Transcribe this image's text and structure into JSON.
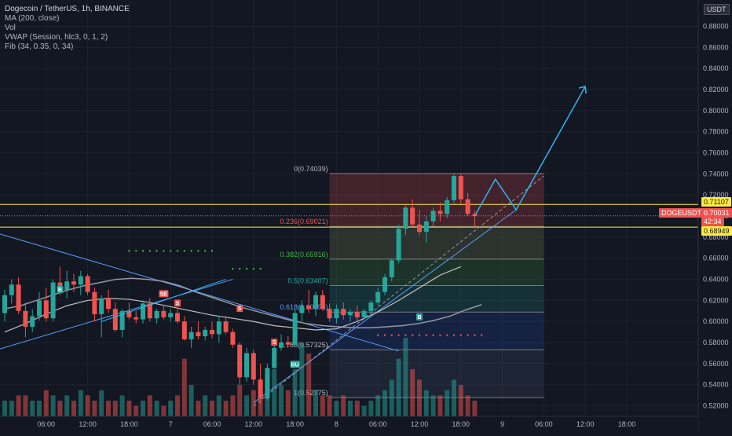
{
  "header": {
    "symbol_line": "Dogecoin / TetherUS, 1h, BINANCE",
    "indicators": [
      "MA (200, close)",
      "Vol",
      "VWAP (Session, hlc3, 0, 1, 2)",
      "Fib (34, 0.35, 0, 34)"
    ]
  },
  "currency_badge": "USDT",
  "colors": {
    "up": "#26a69a",
    "down": "#ef5350",
    "bg": "#131722",
    "fib_line": "#5b9cf6",
    "yellow": "#ffeb3b"
  },
  "price_pills": {
    "upper": "0.71107",
    "ticker": "DOGEUSDT",
    "last": "0.70031",
    "countdown": "42:34",
    "lower": "0.68949"
  },
  "chart_data": {
    "type": "candlestick",
    "ylim": [
      0.51,
      0.905
    ],
    "y_ticks": [
      0.52,
      0.54,
      0.56,
      0.58,
      0.6,
      0.62,
      0.64,
      0.66,
      0.68,
      0.7,
      0.72,
      0.74,
      0.76,
      0.78,
      0.8,
      0.82,
      0.84,
      0.86,
      0.88
    ],
    "y_tick_labels": [
      "0.52000",
      "0.54000",
      "0.56000",
      "0.58000",
      "0.60000",
      "0.62000",
      "0.64000",
      "0.66000",
      "0.68000",
      "0.70000",
      "0.72000",
      "0.74000",
      "0.76000",
      "0.78000",
      "0.80000",
      "0.82000",
      "0.84000",
      "0.86000",
      "0.88000"
    ],
    "x_ticks": [
      {
        "label": "06:00",
        "bar": 6
      },
      {
        "label": "12:00",
        "bar": 12
      },
      {
        "label": "18:00",
        "bar": 18
      },
      {
        "label": "7",
        "bar": 24
      },
      {
        "label": "06:00",
        "bar": 30
      },
      {
        "label": "12:00",
        "bar": 36
      },
      {
        "label": "18:00",
        "bar": 42
      },
      {
        "label": "8",
        "bar": 48
      },
      {
        "label": "06:00",
        "bar": 54
      },
      {
        "label": "12:00",
        "bar": 60
      },
      {
        "label": "18:00",
        "bar": 66
      },
      {
        "label": "9",
        "bar": 72
      },
      {
        "label": "06:00",
        "bar": 78
      },
      {
        "label": "12:00",
        "bar": 84
      },
      {
        "label": "18:00",
        "bar": 90
      }
    ],
    "candles": [
      [
        0.608,
        0.63,
        0.6,
        0.625,
        3
      ],
      [
        0.625,
        0.64,
        0.617,
        0.635,
        3
      ],
      [
        0.635,
        0.642,
        0.607,
        0.61,
        4
      ],
      [
        0.61,
        0.618,
        0.585,
        0.595,
        4
      ],
      [
        0.595,
        0.612,
        0.59,
        0.605,
        3
      ],
      [
        0.605,
        0.628,
        0.601,
        0.62,
        3
      ],
      [
        0.62,
        0.632,
        0.6,
        0.603,
        5
      ],
      [
        0.603,
        0.64,
        0.6,
        0.637,
        4
      ],
      [
        0.637,
        0.652,
        0.625,
        0.63,
        3
      ],
      [
        0.63,
        0.648,
        0.622,
        0.638,
        4
      ],
      [
        0.638,
        0.645,
        0.628,
        0.635,
        3
      ],
      [
        0.635,
        0.648,
        0.625,
        0.643,
        5
      ],
      [
        0.643,
        0.645,
        0.625,
        0.628,
        4
      ],
      [
        0.628,
        0.632,
        0.6,
        0.607,
        3
      ],
      [
        0.607,
        0.625,
        0.585,
        0.622,
        5
      ],
      [
        0.622,
        0.63,
        0.608,
        0.612,
        3
      ],
      [
        0.612,
        0.618,
        0.59,
        0.592,
        3
      ],
      [
        0.592,
        0.612,
        0.585,
        0.61,
        4
      ],
      [
        0.61,
        0.618,
        0.602,
        0.604,
        3
      ],
      [
        0.604,
        0.61,
        0.598,
        0.602,
        2
      ],
      [
        0.602,
        0.62,
        0.598,
        0.617,
        3
      ],
      [
        0.617,
        0.622,
        0.6,
        0.603,
        4
      ],
      [
        0.603,
        0.612,
        0.598,
        0.61,
        3
      ],
      [
        0.61,
        0.616,
        0.602,
        0.604,
        2
      ],
      [
        0.604,
        0.612,
        0.6,
        0.608,
        3
      ],
      [
        0.608,
        0.613,
        0.598,
        0.6,
        4
      ],
      [
        0.6,
        0.605,
        0.582,
        0.583,
        11
      ],
      [
        0.583,
        0.595,
        0.575,
        0.59,
        6
      ],
      [
        0.59,
        0.6,
        0.583,
        0.586,
        3
      ],
      [
        0.586,
        0.595,
        0.582,
        0.592,
        4
      ],
      [
        0.592,
        0.6,
        0.584,
        0.588,
        3
      ],
      [
        0.588,
        0.605,
        0.58,
        0.6,
        4
      ],
      [
        0.6,
        0.605,
        0.588,
        0.59,
        3
      ],
      [
        0.59,
        0.593,
        0.575,
        0.578,
        4
      ],
      [
        0.578,
        0.58,
        0.54,
        0.547,
        6
      ],
      [
        0.547,
        0.575,
        0.543,
        0.57,
        4
      ],
      [
        0.57,
        0.573,
        0.54,
        0.545,
        5
      ],
      [
        0.545,
        0.56,
        0.522,
        0.527,
        7
      ],
      [
        0.527,
        0.56,
        0.525,
        0.556,
        8
      ],
      [
        0.556,
        0.582,
        0.555,
        0.575,
        9
      ],
      [
        0.575,
        0.588,
        0.572,
        0.58,
        6
      ],
      [
        0.58,
        0.586,
        0.575,
        0.578,
        5
      ],
      [
        0.578,
        0.612,
        0.576,
        0.608,
        9
      ],
      [
        0.608,
        0.62,
        0.6,
        0.615,
        14
      ],
      [
        0.615,
        0.63,
        0.608,
        0.612,
        12
      ],
      [
        0.612,
        0.628,
        0.605,
        0.625,
        5
      ],
      [
        0.625,
        0.63,
        0.61,
        0.612,
        4
      ],
      [
        0.612,
        0.617,
        0.6,
        0.603,
        4
      ],
      [
        0.603,
        0.616,
        0.598,
        0.612,
        3
      ],
      [
        0.612,
        0.618,
        0.602,
        0.606,
        4
      ],
      [
        0.606,
        0.612,
        0.6,
        0.609,
        3
      ],
      [
        0.609,
        0.615,
        0.6,
        0.604,
        3
      ],
      [
        0.604,
        0.612,
        0.602,
        0.61,
        2
      ],
      [
        0.61,
        0.62,
        0.605,
        0.618,
        3
      ],
      [
        0.618,
        0.632,
        0.615,
        0.628,
        4
      ],
      [
        0.628,
        0.645,
        0.625,
        0.642,
        5
      ],
      [
        0.642,
        0.66,
        0.638,
        0.658,
        7
      ],
      [
        0.658,
        0.692,
        0.655,
        0.688,
        11
      ],
      [
        0.688,
        0.71,
        0.682,
        0.708,
        15
      ],
      [
        0.708,
        0.716,
        0.69,
        0.692,
        9
      ],
      [
        0.692,
        0.706,
        0.682,
        0.685,
        7
      ],
      [
        0.685,
        0.7,
        0.675,
        0.695,
        5
      ],
      [
        0.695,
        0.708,
        0.69,
        0.705,
        4
      ],
      [
        0.705,
        0.713,
        0.695,
        0.702,
        4
      ],
      [
        0.702,
        0.718,
        0.698,
        0.715,
        5
      ],
      [
        0.715,
        0.74,
        0.712,
        0.738,
        7
      ],
      [
        0.738,
        0.74,
        0.712,
        0.716,
        6
      ],
      [
        0.716,
        0.722,
        0.7,
        0.702,
        4
      ],
      [
        0.702,
        0.705,
        0.69,
        0.7,
        3
      ]
    ],
    "fib_levels": [
      {
        "label": "0(0.74039)",
        "value": 0.74039
      },
      {
        "label": "0.236(0.69021)",
        "value": 0.69021
      },
      {
        "label": "0.382(0.65916)",
        "value": 0.65916
      },
      {
        "label": "0.5(0.63407)",
        "value": 0.63407
      },
      {
        "label": "0.618(0.60898)",
        "value": 0.60898
      },
      {
        "label": "0.786(0.57325)",
        "value": 0.57325
      },
      {
        "label": "1(0.52775)",
        "value": 0.52775
      }
    ],
    "horizontal_lines": [
      0.71107,
      0.68949
    ],
    "signals": [
      {
        "text": "SE",
        "bar": 23,
        "price": 0.626,
        "color": "#ef5350"
      },
      {
        "text": "S",
        "bar": 25,
        "price": 0.617,
        "color": "#ef5350"
      },
      {
        "text": "S",
        "bar": 34,
        "price": 0.612,
        "color": "#ef5350"
      },
      {
        "text": "S",
        "bar": 39,
        "price": 0.58,
        "color": "#ef5350"
      },
      {
        "text": "B",
        "bar": 8,
        "price": 0.63,
        "color": "#26a69a"
      },
      {
        "text": "BU",
        "bar": 42,
        "price": 0.559,
        "color": "#26a69a"
      },
      {
        "text": "B",
        "bar": 60,
        "price": 0.604,
        "color": "#26a69a"
      }
    ]
  }
}
